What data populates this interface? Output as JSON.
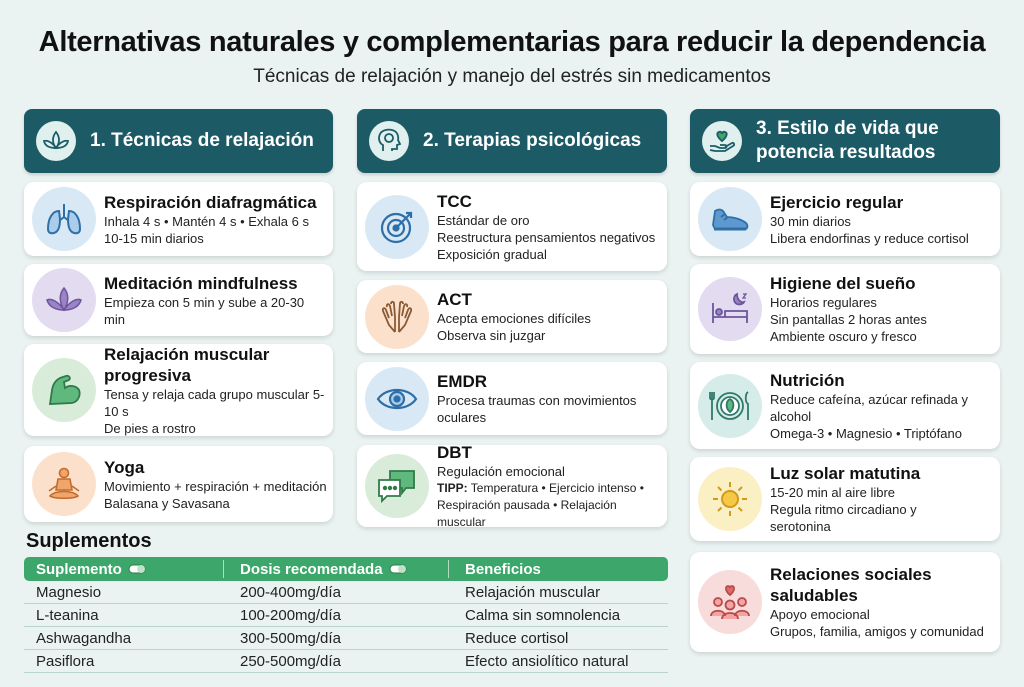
{
  "header": {
    "title": "Alternativas naturales y complementarias para reducir la dependencia",
    "subtitle": "Técnicas de relajación y manejo del estrés sin medicamentos"
  },
  "columns": [
    {
      "heading": "1. Técnicas de relajación",
      "icon": "lotus-icon",
      "cards": [
        {
          "title": "Respiración diafragmática",
          "lines": [
            "Inhala 4 s • Mantén 4 s • Exhala 6 s",
            "10-15 min diarios"
          ],
          "icon": "lungs-icon"
        },
        {
          "title": "Meditación mindfulness",
          "lines": [
            "Empieza con 5 min y sube a 20-30 min"
          ],
          "icon": "lotus-icon"
        },
        {
          "title": "Relajación muscular progresiva",
          "lines": [
            "Tensa y relaja cada grupo muscular 5-10 s",
            "De pies a rostro"
          ],
          "icon": "flexed-arm-icon"
        },
        {
          "title": "Yoga",
          "lines": [
            "Movimiento + respiración + meditación",
            "Balasana y Savasana"
          ],
          "icon": "yoga-pose-icon"
        }
      ]
    },
    {
      "heading": "2. Terapias psicológicas",
      "icon": "head-brain-icon",
      "cards": [
        {
          "title": "TCC",
          "lines": [
            "Estándar de oro",
            "Reestructura pensamientos negativos",
            "Exposición gradual"
          ],
          "icon": "target-icon"
        },
        {
          "title": "ACT",
          "lines": [
            "Acepta emociones difíciles",
            "Observa sin juzgar"
          ],
          "icon": "open-hands-icon"
        },
        {
          "title": "EMDR",
          "lines": [
            "Procesa traumas con movimientos",
            "oculares"
          ],
          "icon": "eye-icon"
        },
        {
          "title": "DBT",
          "lines": [
            "Regulación emocional"
          ],
          "tipp_label": "TIPP:",
          "tipp_text": "Temperatura • Ejercicio intenso •",
          "tipp_line2": "Respiración pausada • Relajación muscular",
          "icon": "chat-bubbles-icon"
        }
      ]
    },
    {
      "heading_line1": "3. Estilo de vida que",
      "heading_line2": "potencia resultados",
      "icon": "heart-hand-icon",
      "cards": [
        {
          "title": "Ejercicio regular",
          "lines": [
            "30 min diarios",
            "Libera endorfinas y reduce cortisol"
          ],
          "icon": "running-shoe-icon"
        },
        {
          "title": "Higiene del sueño",
          "lines": [
            "Horarios regulares",
            "Sin pantallas 2 horas antes",
            "Ambiente oscuro y fresco"
          ],
          "icon": "bed-moon-icon"
        },
        {
          "title": "Nutrición",
          "lines": [
            "Reduce cafeína, azúcar refinada y",
            "alcohol",
            "Omega-3 • Magnesio • Triptófano"
          ],
          "icon": "plate-cutlery-icon"
        },
        {
          "title": "Luz solar matutina",
          "lines": [
            "15-20 min al aire libre",
            "Regula ritmo circadiano y",
            "serotonina"
          ],
          "icon": "sun-icon"
        },
        {
          "title_line1": "Relaciones sociales",
          "title_line2": "saludables",
          "lines": [
            "Apoyo emocional",
            "Grupos, familia, amigos y comunidad"
          ],
          "icon": "people-heart-icon"
        }
      ]
    }
  ],
  "supplements": {
    "title": "Suplementos",
    "headers": [
      "Suplemento",
      "Dosis recomendada",
      "Beneficios"
    ],
    "rows": [
      [
        "Magnesio",
        "200-400mg/día",
        "Relajación muscular"
      ],
      [
        "L-teanina",
        "100-200mg/día",
        "Calma sin somnolencia"
      ],
      [
        "Ashwagandha",
        "300-500mg/día",
        "Reduce cortisol"
      ],
      [
        "Pasiflora",
        "250-500mg/día",
        "Efecto ansiolítico natural"
      ]
    ]
  },
  "colors": {
    "header_bg": "#1c5b66",
    "table_header": "#3da66a",
    "page_bg": "#eaf3f2"
  }
}
